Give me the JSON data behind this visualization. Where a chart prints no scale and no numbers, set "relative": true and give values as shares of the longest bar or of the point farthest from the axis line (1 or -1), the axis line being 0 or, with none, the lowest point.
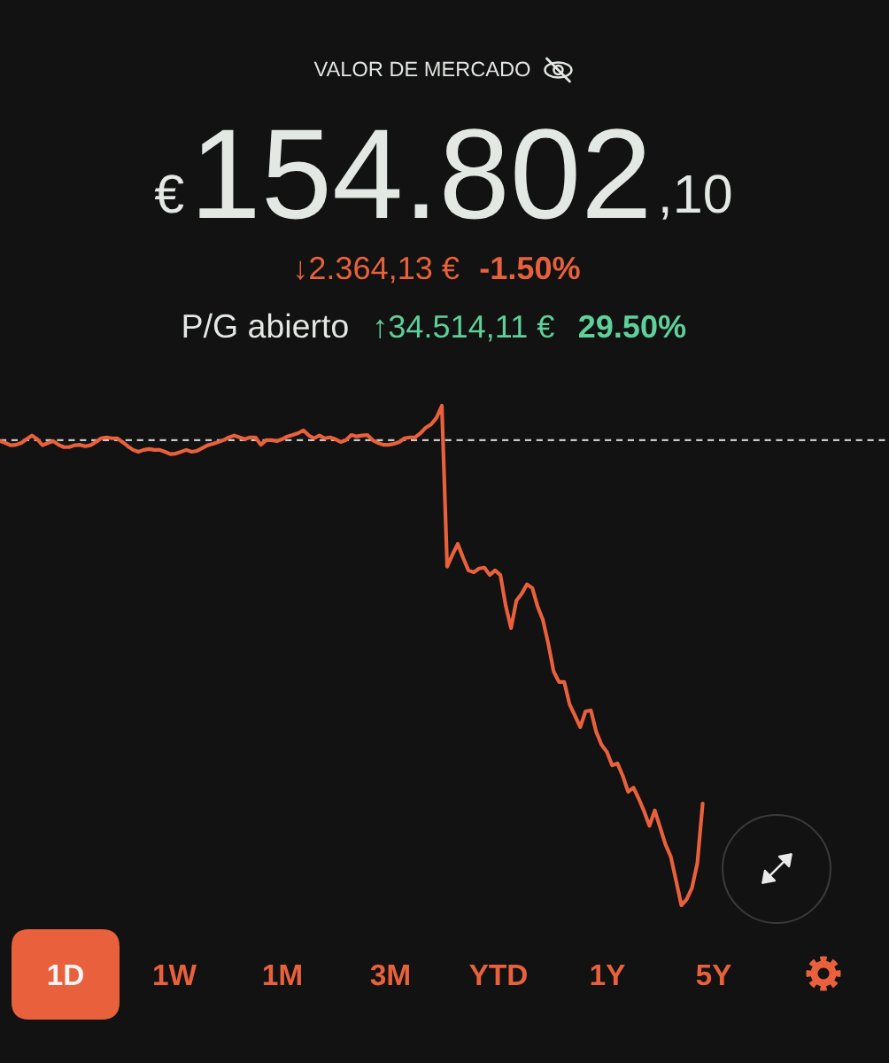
{
  "chart_data": {
    "type": "line",
    "relative": true,
    "title": "VALOR DE MERCADO",
    "annotations": [
      "€",
      "154.802",
      ",10",
      "↓2.364,13 €",
      "-1.50%",
      "P/G abierto",
      "↑34.514,11 €",
      "29.50%",
      "1D",
      "1W",
      "1M",
      "3M",
      "YTD",
      "1Y",
      "5Y"
    ],
    "color": "#e8613c",
    "ref_lines": [
      {
        "axis": "y",
        "value": 0,
        "color": "#c8c8c8",
        "line_style": "dashed"
      }
    ],
    "categories": [
      null,
      null,
      null,
      null,
      null,
      null,
      null,
      null,
      null,
      null,
      null,
      null,
      null,
      null,
      null,
      null,
      null,
      null,
      null,
      null,
      null,
      null,
      null,
      null,
      null,
      null,
      null,
      null,
      null,
      null,
      null,
      null,
      null,
      null,
      null,
      null,
      null,
      null,
      null,
      null,
      null,
      null,
      null,
      null,
      null,
      null,
      null,
      null,
      null,
      null,
      null,
      null,
      null,
      null,
      null,
      null,
      null,
      null,
      null,
      null,
      null,
      null,
      null,
      null,
      null,
      null,
      null,
      null,
      null,
      null,
      null,
      null,
      null,
      null,
      null,
      null,
      null,
      null,
      null,
      null,
      null,
      null,
      null,
      null,
      null,
      null,
      null,
      null,
      null,
      null,
      null,
      null,
      null,
      null,
      null,
      null,
      null,
      null,
      null,
      null,
      null,
      null,
      null,
      null,
      null,
      null,
      null,
      null,
      null,
      null,
      null,
      null,
      null,
      null,
      null,
      null,
      null,
      null,
      null,
      null,
      null,
      null,
      null,
      null,
      null,
      null,
      null,
      null,
      null,
      null,
      null,
      null,
      null,
      null,
      null,
      null,
      null,
      null,
      null,
      null,
      null,
      null,
      null,
      null,
      null,
      null,
      null,
      null,
      null,
      null,
      null,
      null,
      null,
      null,
      null,
      null,
      null,
      null,
      null,
      null,
      null,
      null,
      null,
      null,
      null,
      null,
      null,
      null
    ],
    "values": [
      -0.002,
      -0.006,
      -0.011,
      -0.01,
      -0.006,
      0.002,
      0.01,
      0.002,
      -0.011,
      -0.006,
      -0.002,
      -0.01,
      -0.015,
      -0.015,
      -0.011,
      -0.01,
      -0.013,
      -0.011,
      -0.004,
      0.004,
      0.006,
      0.004,
      0.004,
      -0.004,
      -0.013,
      -0.021,
      -0.025,
      -0.021,
      -0.019,
      -0.021,
      -0.021,
      -0.025,
      -0.03,
      -0.029,
      -0.025,
      -0.021,
      -0.025,
      -0.023,
      -0.017,
      -0.011,
      -0.008,
      -0.004,
      0,
      0.006,
      0.01,
      0.006,
      0.002,
      0.006,
      0.006,
      -0.01,
      0,
      0,
      -0.002,
      0.002,
      0.008,
      0.011,
      0.015,
      0.021,
      0.01,
      0.004,
      0.01,
      0.004,
      0.006,
      0.002,
      -0.004,
      0,
      0.011,
      0.008,
      0.01,
      0.011,
      0,
      -0.006,
      -0.01,
      -0.01,
      -0.008,
      -0.004,
      0.004,
      0.006,
      0.006,
      0.015,
      0.027,
      0.034,
      0.048,
      0.074,
      -0.272,
      -0.246,
      -0.223,
      -0.253,
      -0.28,
      -0.284,
      -0.276,
      -0.274,
      -0.29,
      -0.28,
      -0.29,
      -0.356,
      -0.404,
      -0.345,
      -0.33,
      -0.31,
      -0.318,
      -0.358,
      -0.387,
      -0.438,
      -0.497,
      -0.52,
      -0.52,
      -0.568,
      -0.592,
      -0.617,
      -0.583,
      -0.581,
      -0.627,
      -0.655,
      -0.67,
      -0.699,
      -0.695,
      -0.722,
      -0.756,
      -0.747,
      -0.771,
      -0.798,
      -0.829,
      -0.796,
      -0.832,
      -0.869,
      -0.895,
      -0.947,
      -1,
      -0.987,
      -0.962,
      -0.909,
      -0.781,
      null,
      null,
      null,
      null,
      null,
      null,
      null,
      null,
      null,
      null,
      null,
      null,
      null,
      null,
      null,
      null,
      null,
      null,
      null,
      null,
      null,
      null,
      null,
      null,
      null,
      null,
      null,
      null,
      null,
      null,
      null,
      null,
      null,
      null,
      null
    ]
  }
}
